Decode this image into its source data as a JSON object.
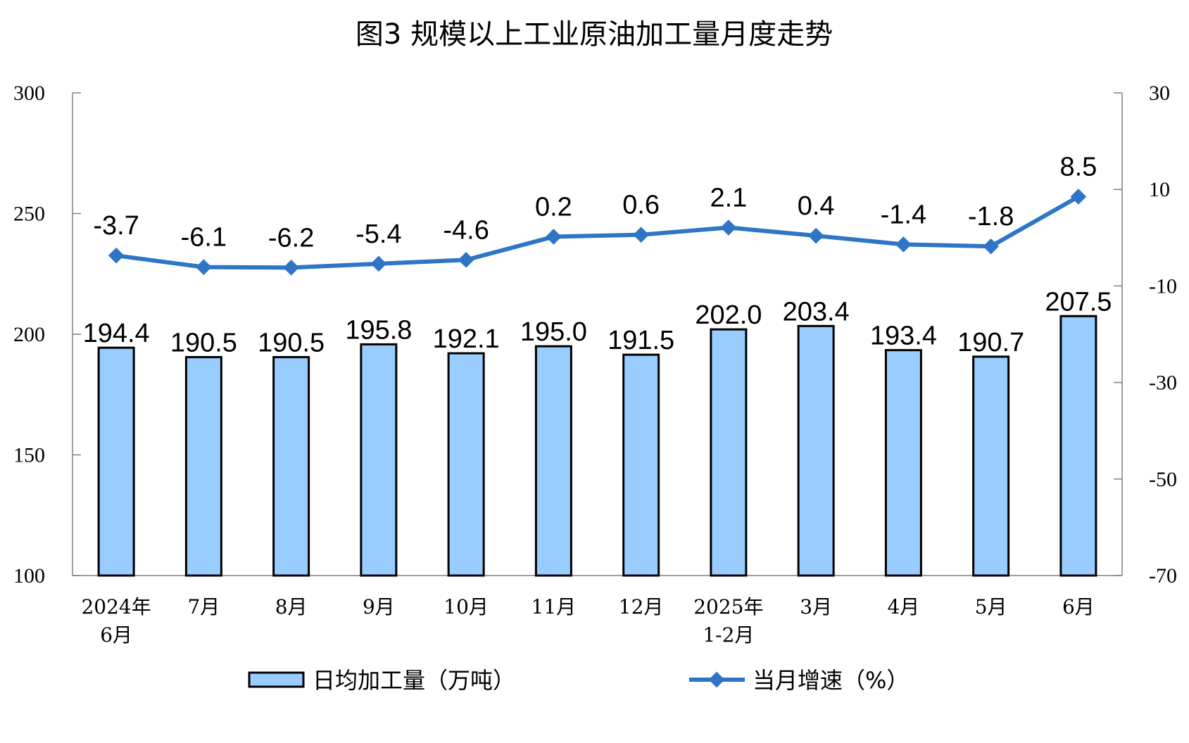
{
  "chart_data": {
    "type": "bar+line",
    "title": "图3  规模以上工业原油加工量月度走势",
    "categories": [
      [
        "2024年",
        "6月"
      ],
      [
        "7月"
      ],
      [
        "8月"
      ],
      [
        "9月"
      ],
      [
        "10月"
      ],
      [
        "11月"
      ],
      [
        "12月"
      ],
      [
        "2025年",
        "1-2月"
      ],
      [
        "3月"
      ],
      [
        "4月"
      ],
      [
        "5月"
      ],
      [
        "6月"
      ]
    ],
    "series": [
      {
        "name": "日均加工量（万吨）",
        "type": "bar",
        "axis": "left",
        "color": "#99CCFF",
        "values": [
          194.4,
          190.5,
          190.5,
          195.8,
          192.1,
          195.0,
          191.5,
          202.0,
          203.4,
          193.4,
          190.7,
          207.5
        ],
        "labels": [
          "194.4",
          "190.5",
          "190.5",
          "195.8",
          "192.1",
          "195.0",
          "191.5",
          "202.0",
          "203.4",
          "193.4",
          "190.7",
          "207.5"
        ]
      },
      {
        "name": "当月增速（%）",
        "type": "line",
        "axis": "right",
        "color": "#2E75C6",
        "values": [
          -3.7,
          -6.1,
          -6.2,
          -5.4,
          -4.6,
          0.2,
          0.6,
          2.1,
          0.4,
          -1.4,
          -1.8,
          8.5
        ],
        "labels": [
          "-3.7",
          "-6.1",
          "-6.2",
          "-5.4",
          "-4.6",
          "0.2",
          "0.6",
          "2.1",
          "0.4",
          "-1.4",
          "-1.8",
          "8.5"
        ]
      }
    ],
    "y_left": {
      "range": [
        100,
        300
      ],
      "ticks": [
        "100",
        "150",
        "200",
        "250",
        "300"
      ]
    },
    "y_right": {
      "range": [
        -70,
        30
      ],
      "ticks": [
        "-70",
        "-50",
        "-30",
        "-10",
        "10",
        "30"
      ]
    },
    "grid": false,
    "legend": "bottom"
  }
}
